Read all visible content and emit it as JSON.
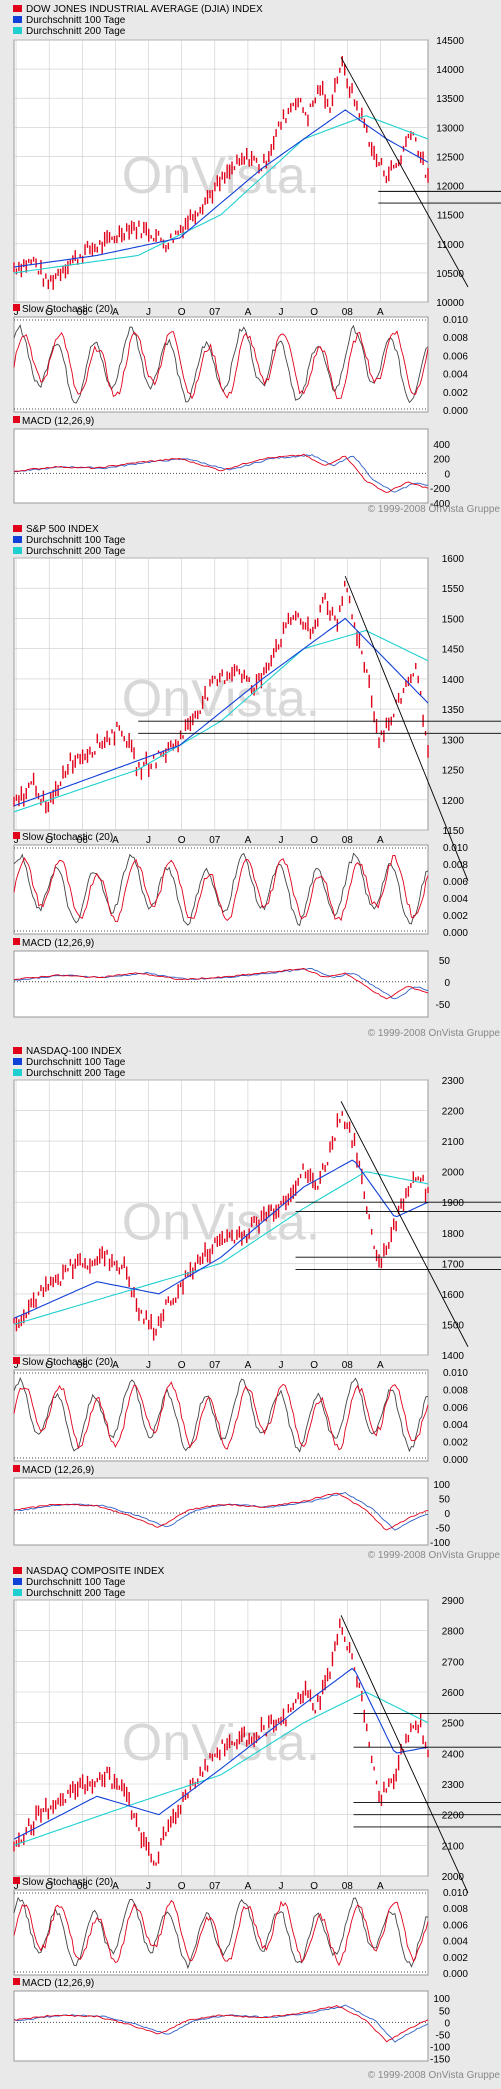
{
  "watermark": "OnVista.",
  "copyright": "© 1999-2008 OnVista Gruppe",
  "legend": {
    "ma100": "Durchschnitt 100 Tage",
    "ma200": "Durchschnitt 200 Tage"
  },
  "colors": {
    "price": "#e0001a",
    "ma100": "#1040d8",
    "ma200": "#20d0d0",
    "panel_bg": "#ffffff",
    "page_bg": "#e9e9e9",
    "grid": "#cccccc"
  },
  "x_tick_labels": [
    "J",
    "O",
    "06",
    "A",
    "J",
    "O",
    "07",
    "A",
    "J",
    "O",
    "08",
    "A"
  ],
  "stochastic": {
    "label": "Slow Stochastic (20)",
    "ticks": [
      "0.010",
      "0.008",
      "0.006",
      "0.004",
      "0.002",
      "0.000"
    ]
  },
  "chart_data": [
    {
      "type": "line",
      "title": "DOW JONES INDUSTRIAL AVERAGE (DJIA) INDEX",
      "x": [
        "2005-07",
        "2008-06"
      ],
      "ylim": [
        10000,
        14500
      ],
      "y_ticks": [
        10000,
        10500,
        11000,
        11500,
        12000,
        12500,
        13000,
        13500,
        14000,
        14500
      ],
      "anchors": [
        [
          0,
          10600
        ],
        [
          0.05,
          10700
        ],
        [
          0.08,
          10300
        ],
        [
          0.12,
          10600
        ],
        [
          0.18,
          10900
        ],
        [
          0.22,
          11000
        ],
        [
          0.28,
          11300
        ],
        [
          0.33,
          11200
        ],
        [
          0.37,
          11000
        ],
        [
          0.42,
          11400
        ],
        [
          0.48,
          11900
        ],
        [
          0.53,
          12300
        ],
        [
          0.57,
          12500
        ],
        [
          0.6,
          12300
        ],
        [
          0.64,
          13000
        ],
        [
          0.68,
          13500
        ],
        [
          0.71,
          13200
        ],
        [
          0.74,
          13700
        ],
        [
          0.76,
          13300
        ],
        [
          0.79,
          14100
        ],
        [
          0.82,
          13500
        ],
        [
          0.85,
          13000
        ],
        [
          0.87,
          12500
        ],
        [
          0.9,
          12200
        ],
        [
          0.93,
          12400
        ],
        [
          0.96,
          13000
        ],
        [
          1.0,
          12100
        ]
      ],
      "ma100_anchors": [
        [
          0,
          10600
        ],
        [
          0.2,
          10800
        ],
        [
          0.4,
          11100
        ],
        [
          0.6,
          12300
        ],
        [
          0.8,
          13300
        ],
        [
          0.9,
          12800
        ],
        [
          1.0,
          12400
        ]
      ],
      "ma200_anchors": [
        [
          0,
          10500
        ],
        [
          0.3,
          10800
        ],
        [
          0.5,
          11500
        ],
        [
          0.7,
          12800
        ],
        [
          0.85,
          13200
        ],
        [
          1.0,
          12800
        ]
      ],
      "trendline": [
        [
          0.79,
          14200
        ],
        [
          1.0,
          11500
        ]
      ],
      "support_levels": [
        11700,
        11900
      ],
      "support_start": 0.88,
      "macd_label": "MACD (12,26,9)",
      "macd_ticks": [
        400,
        200,
        0,
        -200,
        -400
      ],
      "macd_ylim": [
        -400,
        600
      ],
      "macd_anchors": [
        [
          0,
          30
        ],
        [
          0.1,
          90
        ],
        [
          0.2,
          70
        ],
        [
          0.3,
          150
        ],
        [
          0.4,
          200
        ],
        [
          0.5,
          40
        ],
        [
          0.6,
          200
        ],
        [
          0.7,
          250
        ],
        [
          0.75,
          100
        ],
        [
          0.8,
          240
        ],
        [
          0.85,
          -100
        ],
        [
          0.9,
          -260
        ],
        [
          0.95,
          -120
        ],
        [
          1.0,
          -200
        ]
      ]
    },
    {
      "type": "line",
      "title": "S&P 500 INDEX",
      "x": [
        "2005-07",
        "2008-06"
      ],
      "ylim": [
        1150,
        1600
      ],
      "y_ticks": [
        1150,
        1200,
        1250,
        1300,
        1350,
        1400,
        1450,
        1500,
        1550,
        1600
      ],
      "anchors": [
        [
          0,
          1190
        ],
        [
          0.05,
          1230
        ],
        [
          0.08,
          1180
        ],
        [
          0.13,
          1260
        ],
        [
          0.2,
          1290
        ],
        [
          0.26,
          1320
        ],
        [
          0.3,
          1250
        ],
        [
          0.35,
          1270
        ],
        [
          0.4,
          1300
        ],
        [
          0.48,
          1390
        ],
        [
          0.54,
          1420
        ],
        [
          0.58,
          1380
        ],
        [
          0.63,
          1450
        ],
        [
          0.68,
          1510
        ],
        [
          0.72,
          1470
        ],
        [
          0.75,
          1540
        ],
        [
          0.78,
          1480
        ],
        [
          0.8,
          1560
        ],
        [
          0.83,
          1470
        ],
        [
          0.86,
          1390
        ],
        [
          0.88,
          1300
        ],
        [
          0.91,
          1330
        ],
        [
          0.94,
          1380
        ],
        [
          0.97,
          1420
        ],
        [
          1.0,
          1290
        ]
      ],
      "ma100_anchors": [
        [
          0,
          1190
        ],
        [
          0.2,
          1240
        ],
        [
          0.4,
          1290
        ],
        [
          0.6,
          1400
        ],
        [
          0.8,
          1500
        ],
        [
          0.9,
          1430
        ],
        [
          1.0,
          1360
        ]
      ],
      "ma200_anchors": [
        [
          0,
          1180
        ],
        [
          0.3,
          1250
        ],
        [
          0.5,
          1330
        ],
        [
          0.7,
          1450
        ],
        [
          0.85,
          1480
        ],
        [
          1.0,
          1430
        ]
      ],
      "trendline": [
        [
          0.8,
          1570
        ],
        [
          1.0,
          1230
        ]
      ],
      "support_levels": [
        1310,
        1330
      ],
      "support_start": 0.3,
      "macd_label": "MACD (12,26,9)",
      "macd_ticks": [
        50,
        0,
        -50
      ],
      "macd_ylim": [
        -80,
        70
      ],
      "macd_anchors": [
        [
          0,
          5
        ],
        [
          0.1,
          15
        ],
        [
          0.2,
          10
        ],
        [
          0.3,
          20
        ],
        [
          0.4,
          5
        ],
        [
          0.5,
          10
        ],
        [
          0.6,
          20
        ],
        [
          0.7,
          30
        ],
        [
          0.75,
          10
        ],
        [
          0.8,
          20
        ],
        [
          0.85,
          -10
        ],
        [
          0.9,
          -40
        ],
        [
          0.95,
          -10
        ],
        [
          1.0,
          -25
        ]
      ]
    },
    {
      "type": "line",
      "title": "NASDAQ-100 INDEX",
      "x": [
        "2005-07",
        "2008-06"
      ],
      "ylim": [
        1400,
        2300
      ],
      "y_ticks": [
        1400,
        1500,
        1600,
        1700,
        1800,
        1900,
        2000,
        2100,
        2200,
        2300
      ],
      "anchors": [
        [
          0,
          1500
        ],
        [
          0.05,
          1580
        ],
        [
          0.1,
          1640
        ],
        [
          0.15,
          1700
        ],
        [
          0.22,
          1720
        ],
        [
          0.27,
          1680
        ],
        [
          0.3,
          1540
        ],
        [
          0.34,
          1480
        ],
        [
          0.37,
          1560
        ],
        [
          0.43,
          1680
        ],
        [
          0.5,
          1780
        ],
        [
          0.56,
          1800
        ],
        [
          0.6,
          1850
        ],
        [
          0.65,
          1900
        ],
        [
          0.7,
          2000
        ],
        [
          0.73,
          1950
        ],
        [
          0.76,
          2050
        ],
        [
          0.79,
          2200
        ],
        [
          0.82,
          2100
        ],
        [
          0.85,
          1900
        ],
        [
          0.88,
          1700
        ],
        [
          0.91,
          1780
        ],
        [
          0.95,
          1950
        ],
        [
          0.98,
          2000
        ],
        [
          1.0,
          1920
        ]
      ],
      "ma100_anchors": [
        [
          0,
          1520
        ],
        [
          0.2,
          1640
        ],
        [
          0.35,
          1600
        ],
        [
          0.5,
          1720
        ],
        [
          0.7,
          1950
        ],
        [
          0.82,
          2040
        ],
        [
          0.92,
          1850
        ],
        [
          1.0,
          1900
        ]
      ],
      "ma200_anchors": [
        [
          0,
          1500
        ],
        [
          0.3,
          1620
        ],
        [
          0.5,
          1700
        ],
        [
          0.7,
          1880
        ],
        [
          0.85,
          2000
        ],
        [
          1.0,
          1960
        ]
      ],
      "trendline": [
        [
          0.79,
          2230
        ],
        [
          1.0,
          1680
        ]
      ],
      "support_levels": [
        1680,
        1720,
        1870,
        1900
      ],
      "support_start": 0.68,
      "macd_label": "MACD (12,26,9)",
      "macd_ticks": [
        100,
        50,
        0,
        -50,
        -100
      ],
      "macd_ylim": [
        -110,
        120
      ],
      "macd_anchors": [
        [
          0,
          10
        ],
        [
          0.1,
          30
        ],
        [
          0.2,
          25
        ],
        [
          0.28,
          -10
        ],
        [
          0.35,
          -50
        ],
        [
          0.42,
          10
        ],
        [
          0.5,
          30
        ],
        [
          0.6,
          20
        ],
        [
          0.7,
          40
        ],
        [
          0.78,
          70
        ],
        [
          0.85,
          10
        ],
        [
          0.9,
          -60
        ],
        [
          0.95,
          -20
        ],
        [
          1.0,
          10
        ]
      ]
    },
    {
      "type": "line",
      "title": "NASDAQ COMPOSITE INDEX",
      "x": [
        "2005-07",
        "2008-06"
      ],
      "ylim": [
        2000,
        2900
      ],
      "y_ticks": [
        2000,
        2100,
        2200,
        2300,
        2400,
        2500,
        2600,
        2700,
        2800,
        2900
      ],
      "anchors": [
        [
          0,
          2100
        ],
        [
          0.05,
          2180
        ],
        [
          0.1,
          2240
        ],
        [
          0.15,
          2280
        ],
        [
          0.22,
          2330
        ],
        [
          0.27,
          2280
        ],
        [
          0.3,
          2150
        ],
        [
          0.34,
          2050
        ],
        [
          0.37,
          2150
        ],
        [
          0.43,
          2300
        ],
        [
          0.5,
          2420
        ],
        [
          0.56,
          2450
        ],
        [
          0.6,
          2480
        ],
        [
          0.65,
          2500
        ],
        [
          0.7,
          2600
        ],
        [
          0.73,
          2550
        ],
        [
          0.76,
          2650
        ],
        [
          0.79,
          2820
        ],
        [
          0.82,
          2700
        ],
        [
          0.85,
          2500
        ],
        [
          0.88,
          2250
        ],
        [
          0.91,
          2300
        ],
        [
          0.95,
          2450
        ],
        [
          0.98,
          2500
        ],
        [
          1.0,
          2400
        ]
      ],
      "ma100_anchors": [
        [
          0,
          2120
        ],
        [
          0.2,
          2260
        ],
        [
          0.35,
          2200
        ],
        [
          0.5,
          2350
        ],
        [
          0.7,
          2560
        ],
        [
          0.82,
          2680
        ],
        [
          0.92,
          2400
        ],
        [
          1.0,
          2420
        ]
      ],
      "ma200_anchors": [
        [
          0,
          2100
        ],
        [
          0.3,
          2240
        ],
        [
          0.5,
          2330
        ],
        [
          0.7,
          2500
        ],
        [
          0.85,
          2600
        ],
        [
          1.0,
          2500
        ]
      ],
      "trendline": [
        [
          0.79,
          2850
        ],
        [
          1.0,
          2230
        ]
      ],
      "support_levels": [
        2160,
        2200,
        2240,
        2420,
        2530
      ],
      "support_start": 0.82,
      "macd_label": "MACD (12,26,9)",
      "macd_ticks": [
        100,
        50,
        0,
        -50,
        -100,
        -150
      ],
      "macd_ylim": [
        -160,
        130
      ],
      "macd_anchors": [
        [
          0,
          10
        ],
        [
          0.1,
          30
        ],
        [
          0.2,
          25
        ],
        [
          0.28,
          -10
        ],
        [
          0.35,
          -50
        ],
        [
          0.42,
          10
        ],
        [
          0.5,
          30
        ],
        [
          0.6,
          20
        ],
        [
          0.7,
          40
        ],
        [
          0.78,
          70
        ],
        [
          0.85,
          10
        ],
        [
          0.9,
          -80
        ],
        [
          0.95,
          -30
        ],
        [
          1.0,
          10
        ]
      ]
    }
  ]
}
